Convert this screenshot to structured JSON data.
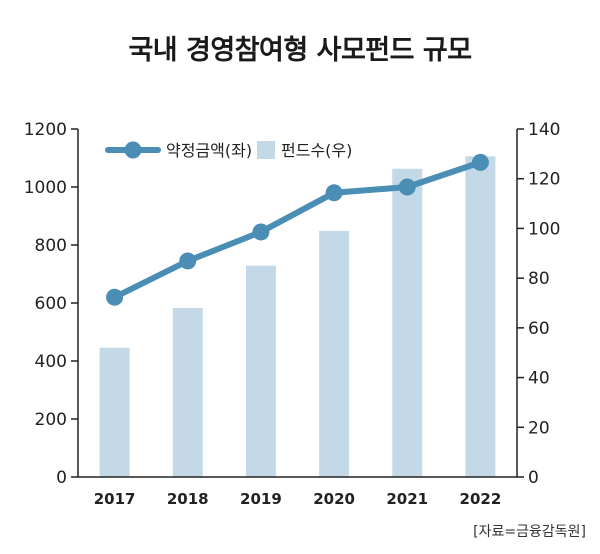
{
  "title": "국내 경영참여형 사모펀드 규모",
  "source": "[자료=금융감독원]",
  "colors": {
    "line": "#4a8db5",
    "bar": "#c3d9e8",
    "axis": "#222222"
  },
  "chart_data": {
    "type": "bar+line",
    "title": "국내 경영참여형 사모펀드 규모",
    "categories": [
      "2017",
      "2018",
      "2019",
      "2020",
      "2021",
      "2022"
    ],
    "series": [
      {
        "name": "약정금액(좌)",
        "type": "line",
        "axis": "left",
        "values": [
          620,
          745,
          845,
          980,
          1000,
          1085
        ]
      },
      {
        "name": "펀드수(우)",
        "type": "bar",
        "axis": "right",
        "values": [
          52,
          68,
          85,
          99,
          124,
          129
        ]
      }
    ],
    "y_left": {
      "ylim": [
        0,
        1200
      ],
      "ticks": [
        0,
        200,
        400,
        600,
        800,
        1000,
        1200
      ]
    },
    "y_right": {
      "ylim": [
        0,
        140
      ],
      "ticks": [
        0,
        20,
        40,
        60,
        80,
        100,
        120,
        140
      ]
    },
    "legend": {
      "placement": "top-left"
    },
    "grid": false
  }
}
